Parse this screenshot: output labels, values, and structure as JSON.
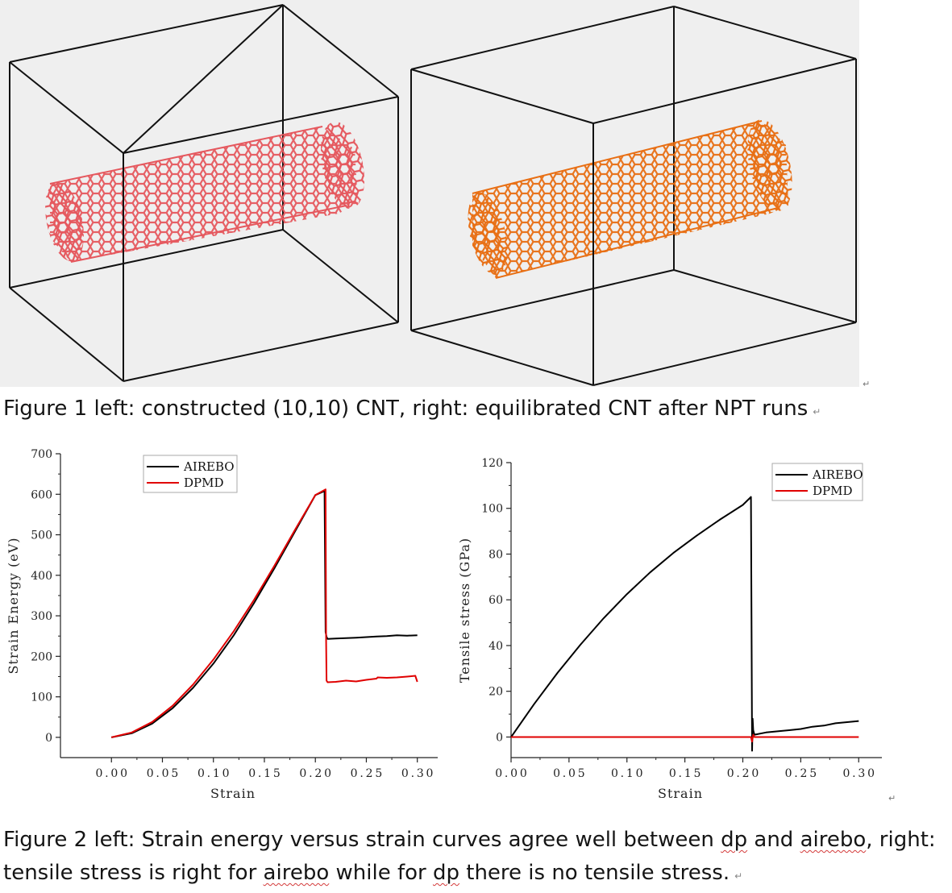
{
  "figure1": {
    "caption": "Figure 1 left: constructed (10,10) CNT, right: equilibrated CNT after NPT runs",
    "left_tube_color": "#e5585e",
    "right_tube_color": "#e86f14"
  },
  "figure2": {
    "caption_parts": [
      {
        "text": "Figure 2 left: Strain energy versus strain curves agree well between ",
        "squiggle": false
      },
      {
        "text": "dp",
        "squiggle": true
      },
      {
        "text": " and ",
        "squiggle": false
      },
      {
        "text": "airebo",
        "squiggle": true
      },
      {
        "text": ", right: tensile stress is right for ",
        "squiggle": false
      },
      {
        "text": "airebo",
        "squiggle": true
      },
      {
        "text": " while for ",
        "squiggle": false
      },
      {
        "text": "dp",
        "squiggle": true
      },
      {
        "text": " there is no tensile stress.",
        "squiggle": false
      }
    ]
  },
  "chart_data": [
    {
      "type": "line",
      "xlabel": "Strain",
      "ylabel": "Strain Energy  (eV)",
      "xlim": [
        -0.05,
        0.32
      ],
      "ylim": [
        -50,
        700
      ],
      "xticks": [
        "0.00",
        "0.05",
        "0.10",
        "0.15",
        "0.20",
        "0.25",
        "0.30"
      ],
      "yticks": [
        "0",
        "100",
        "200",
        "300",
        "400",
        "500",
        "600",
        "700"
      ],
      "legend": "top-left",
      "series": [
        {
          "name": "AIREBO",
          "color": "#000000",
          "x": [
            0.0,
            0.02,
            0.04,
            0.06,
            0.08,
            0.1,
            0.12,
            0.14,
            0.16,
            0.18,
            0.2,
            0.209,
            0.2095,
            0.21,
            0.211,
            0.212,
            0.22,
            0.24,
            0.26,
            0.27,
            0.28,
            0.29,
            0.3
          ],
          "y": [
            0,
            10,
            34,
            72,
            122,
            182,
            252,
            332,
            418,
            508,
            598,
            608,
            450,
            260,
            248,
            243,
            244,
            246,
            249,
            250,
            252,
            251,
            252
          ]
        },
        {
          "name": "DPMD",
          "color": "#e00000",
          "x": [
            0.0,
            0.02,
            0.04,
            0.06,
            0.08,
            0.1,
            0.12,
            0.14,
            0.16,
            0.18,
            0.2,
            0.21,
            0.2105,
            0.211,
            0.212,
            0.22,
            0.23,
            0.24,
            0.25,
            0.26,
            0.261,
            0.27,
            0.28,
            0.29,
            0.298,
            0.3
          ],
          "y": [
            0,
            12,
            38,
            78,
            130,
            192,
            262,
            340,
            424,
            512,
            598,
            612,
            250,
            140,
            136,
            137,
            140,
            138,
            142,
            145,
            148,
            147,
            148,
            150,
            152,
            137
          ]
        }
      ]
    },
    {
      "type": "line",
      "xlabel": "Strain",
      "ylabel": "Tensile stress (GPa)",
      "xlim": [
        0.0,
        0.32
      ],
      "ylim": [
        -9,
        120
      ],
      "xticks": [
        "0.00",
        "0.05",
        "0.10",
        "0.15",
        "0.20",
        "0.25",
        "0.30"
      ],
      "yticks": [
        "0",
        "20",
        "40",
        "60",
        "80",
        "100",
        "120"
      ],
      "legend": "top-right",
      "series": [
        {
          "name": "AIREBO",
          "color": "#000000",
          "x": [
            0.0,
            0.02,
            0.04,
            0.06,
            0.08,
            0.1,
            0.12,
            0.14,
            0.16,
            0.18,
            0.2,
            0.207,
            0.2075,
            0.208,
            0.2085,
            0.209,
            0.21,
            0.22,
            0.23,
            0.24,
            0.25,
            0.26,
            0.27,
            0.28,
            0.29,
            0.3
          ],
          "y": [
            0,
            14.5,
            28,
            40.5,
            52,
            62.5,
            72,
            80.5,
            88,
            95,
            101.5,
            105,
            50,
            -6,
            8,
            3,
            1,
            2,
            2.5,
            3,
            3.5,
            4.5,
            5,
            6,
            6.5,
            7
          ]
        },
        {
          "name": "DPMD",
          "color": "#e00000",
          "x": [
            0.0,
            0.05,
            0.1,
            0.15,
            0.2,
            0.207,
            0.208,
            0.209,
            0.21,
            0.25,
            0.3
          ],
          "y": [
            0,
            0,
            0,
            0,
            0,
            0,
            -2,
            1,
            0,
            0,
            0
          ]
        }
      ]
    }
  ]
}
